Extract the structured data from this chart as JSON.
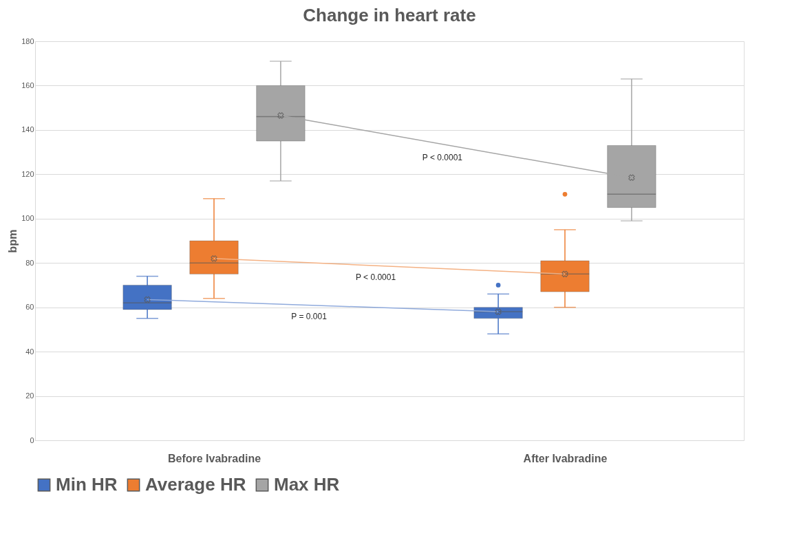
{
  "chart_data": {
    "type": "box",
    "title": "Change in heart rate",
    "ylabel": "bpm",
    "categories": [
      "Before Ivabradine",
      "After Ivabradine"
    ],
    "series": [
      {
        "name": "Min HR",
        "color": "#4472c4",
        "boxes": [
          {
            "low": 55,
            "q1": 59,
            "median": 62,
            "q3": 70,
            "high": 74,
            "mean": 63.5
          },
          {
            "low": 48,
            "q1": 55,
            "median": 58,
            "q3": 60,
            "high": 66,
            "mean": 58,
            "outliers": [
              70
            ]
          }
        ]
      },
      {
        "name": "Average HR",
        "color": "#ed7d31",
        "boxes": [
          {
            "low": 64,
            "q1": 75,
            "median": 80,
            "q3": 90,
            "high": 109,
            "mean": 82
          },
          {
            "low": 60,
            "q1": 67,
            "median": 75,
            "q3": 81,
            "high": 95,
            "mean": 75,
            "outliers": [
              111
            ]
          }
        ]
      },
      {
        "name": "Max HR",
        "color": "#a5a5a5",
        "boxes": [
          {
            "low": 117,
            "q1": 135,
            "median": 146,
            "q3": 160,
            "high": 171,
            "mean": 146.5
          },
          {
            "low": 99,
            "q1": 105,
            "median": 111,
            "q3": 133,
            "high": 163,
            "mean": 118.5
          }
        ]
      },
      {
        "type": "line",
        "color": "#8faadc",
        "values": [
          63.5,
          58
        ]
      },
      {
        "type": "line",
        "color": "#f4b183",
        "values": [
          82,
          75
        ]
      },
      {
        "type": "line",
        "color": "#a5a5a5",
        "values": [
          146.5,
          118.5
        ]
      }
    ],
    "ylim": [
      0,
      180
    ],
    "yticks": [
      0,
      20,
      40,
      60,
      80,
      100,
      120,
      140,
      160,
      180
    ],
    "grid": "y",
    "legend": "bottom",
    "annotations": [
      "P = 0.001",
      "P < 0.0001",
      "P < 0.0001"
    ]
  }
}
